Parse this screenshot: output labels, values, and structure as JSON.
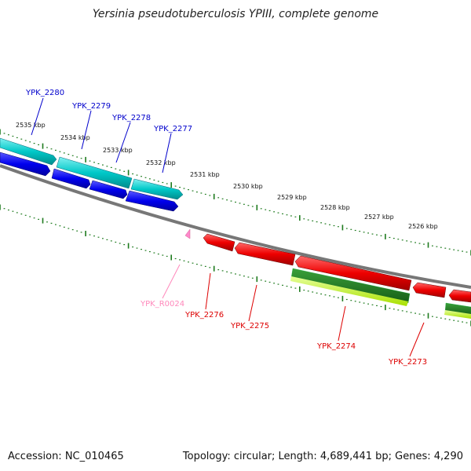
{
  "title": "Yersinia pseudotuberculosis YPIII, complete genome",
  "accession": "Accession: NC_010465",
  "summary": "Topology: circular; Length: 4,689,441 bp; Genes: 4,290",
  "colors": {
    "backbone": "#8a8a8a",
    "tick": "#1d7a1d",
    "cds_plus": "#00c8c8",
    "gene_plus": "#0000ee",
    "gene_minus": "#ee0000",
    "cds_minus_dark": "#1f7a1f",
    "cds_minus_light": "#ccff33",
    "rrna": "#ff88cc",
    "label_plus": "#0000cc",
    "label_minus": "#dd0000",
    "label_rrna": "#ff88bb"
  },
  "ruler": [
    {
      "label": "2535 kbp"
    },
    {
      "label": "2534 kbp"
    },
    {
      "label": "2533 kbp"
    },
    {
      "label": "2532 kbp"
    },
    {
      "label": "2531 kbp"
    },
    {
      "label": "2530 kbp"
    },
    {
      "label": "2529 kbp"
    },
    {
      "label": "2528 kbp"
    },
    {
      "label": "2527 kbp"
    },
    {
      "label": "2526 kbp"
    }
  ],
  "genes_plus": [
    {
      "label": "YPK_2280"
    },
    {
      "label": "YPK_2279"
    },
    {
      "label": "YPK_2278"
    },
    {
      "label": "YPK_2277"
    }
  ],
  "genes_minus": [
    {
      "label": "YPK_R0024"
    },
    {
      "label": "YPK_2276"
    },
    {
      "label": "YPK_2275"
    },
    {
      "label": "YPK_2274"
    },
    {
      "label": "YPK_2273"
    }
  ]
}
